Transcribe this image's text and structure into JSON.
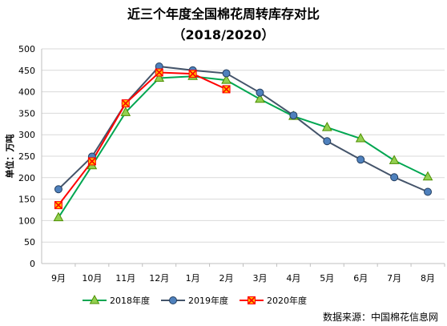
{
  "chart_data": {
    "type": "line",
    "title": "近三个年度全国棉花周转库存对比",
    "subtitle": "（2018/2020）",
    "ylabel": "单位：万吨",
    "source": "数据来源：中国棉花信息网",
    "ylim": [
      0,
      500
    ],
    "yticks": [
      0,
      50,
      100,
      150,
      200,
      250,
      300,
      350,
      400,
      450,
      500
    ],
    "grid": true,
    "legend_position": "bottom",
    "categories": [
      "9月",
      "10月",
      "11月",
      "12月",
      "1月",
      "2月",
      "3月",
      "4月",
      "5月",
      "6月",
      "7月",
      "8月"
    ],
    "series": [
      {
        "name": "2018年度",
        "color": "#00a651",
        "marker": "triangle",
        "values": [
          107,
          228,
          352,
          432,
          436,
          427,
          383,
          343,
          317,
          291,
          240,
          202
        ]
      },
      {
        "name": "2019年度",
        "color": "#44546a",
        "marker": "circle",
        "values": [
          173,
          249,
          373,
          459,
          450,
          443,
          398,
          345,
          285,
          242,
          201,
          167
        ]
      },
      {
        "name": "2020年度",
        "color": "#ff0000",
        "marker": "x-square",
        "values": [
          136,
          238,
          373,
          445,
          442,
          406,
          null,
          null,
          null,
          null,
          null,
          null
        ]
      }
    ]
  }
}
